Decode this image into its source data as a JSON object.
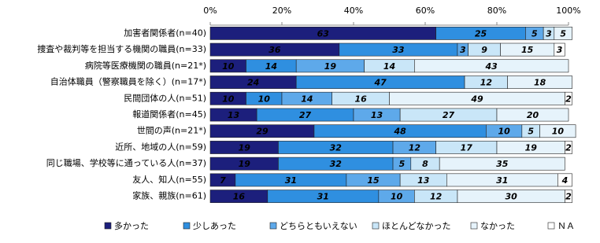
{
  "chart_data": {
    "type": "stacked-bar-horizontal",
    "categories": [
      "加害者関係者(n=40)",
      "捜査や裁判等を担当する機関の職員(n=33)",
      "病院等医療機関の職員(n=21*)",
      "自治体職員（警察職員を除く）(n=17*)",
      "民間団体の人(n=51)",
      "報道関係者(n=45)",
      "世間の声(n=21*)",
      "近所、地域の人(n=59)",
      "同じ職場、学校等に通っている人(n=37)",
      "友人、知人(n=55)",
      "家族、親族(n=61)"
    ],
    "series": [
      {
        "name": "多かった",
        "color": "#1c1f7c",
        "values": [
          63,
          36,
          10,
          24,
          10,
          13,
          29,
          19,
          19,
          7,
          16
        ]
      },
      {
        "name": "少しあった",
        "color": "#2f8fe0",
        "values": [
          25,
          33,
          14,
          47,
          10,
          27,
          48,
          32,
          32,
          31,
          31
        ]
      },
      {
        "name": "どちらともいえない",
        "color": "#5ea9ea",
        "values": [
          5,
          3,
          19,
          0,
          14,
          13,
          10,
          12,
          5,
          15,
          10
        ]
      },
      {
        "name": "ほとんどなかった",
        "color": "#c9e6f8",
        "values": [
          3,
          9,
          14,
          12,
          16,
          27,
          5,
          17,
          8,
          13,
          12
        ]
      },
      {
        "name": "なかった",
        "color": "#e6f3fb",
        "values": [
          5,
          15,
          43,
          18,
          49,
          20,
          10,
          19,
          35,
          31,
          30
        ]
      },
      {
        "name": "ＮＡ",
        "color": "#ffffff",
        "values": [
          0,
          3,
          0,
          0,
          2,
          0,
          0,
          2,
          0,
          4,
          2
        ]
      }
    ],
    "xlim": [
      0,
      100
    ],
    "xticks": [
      {
        "value": 0,
        "label": "0%"
      },
      {
        "value": 20,
        "label": "20%"
      },
      {
        "value": 40,
        "label": "40%"
      },
      {
        "value": 60,
        "label": "60%"
      },
      {
        "value": 80,
        "label": "80%"
      },
      {
        "value": 100,
        "label": "100%"
      }
    ],
    "legend": "bottom"
  }
}
